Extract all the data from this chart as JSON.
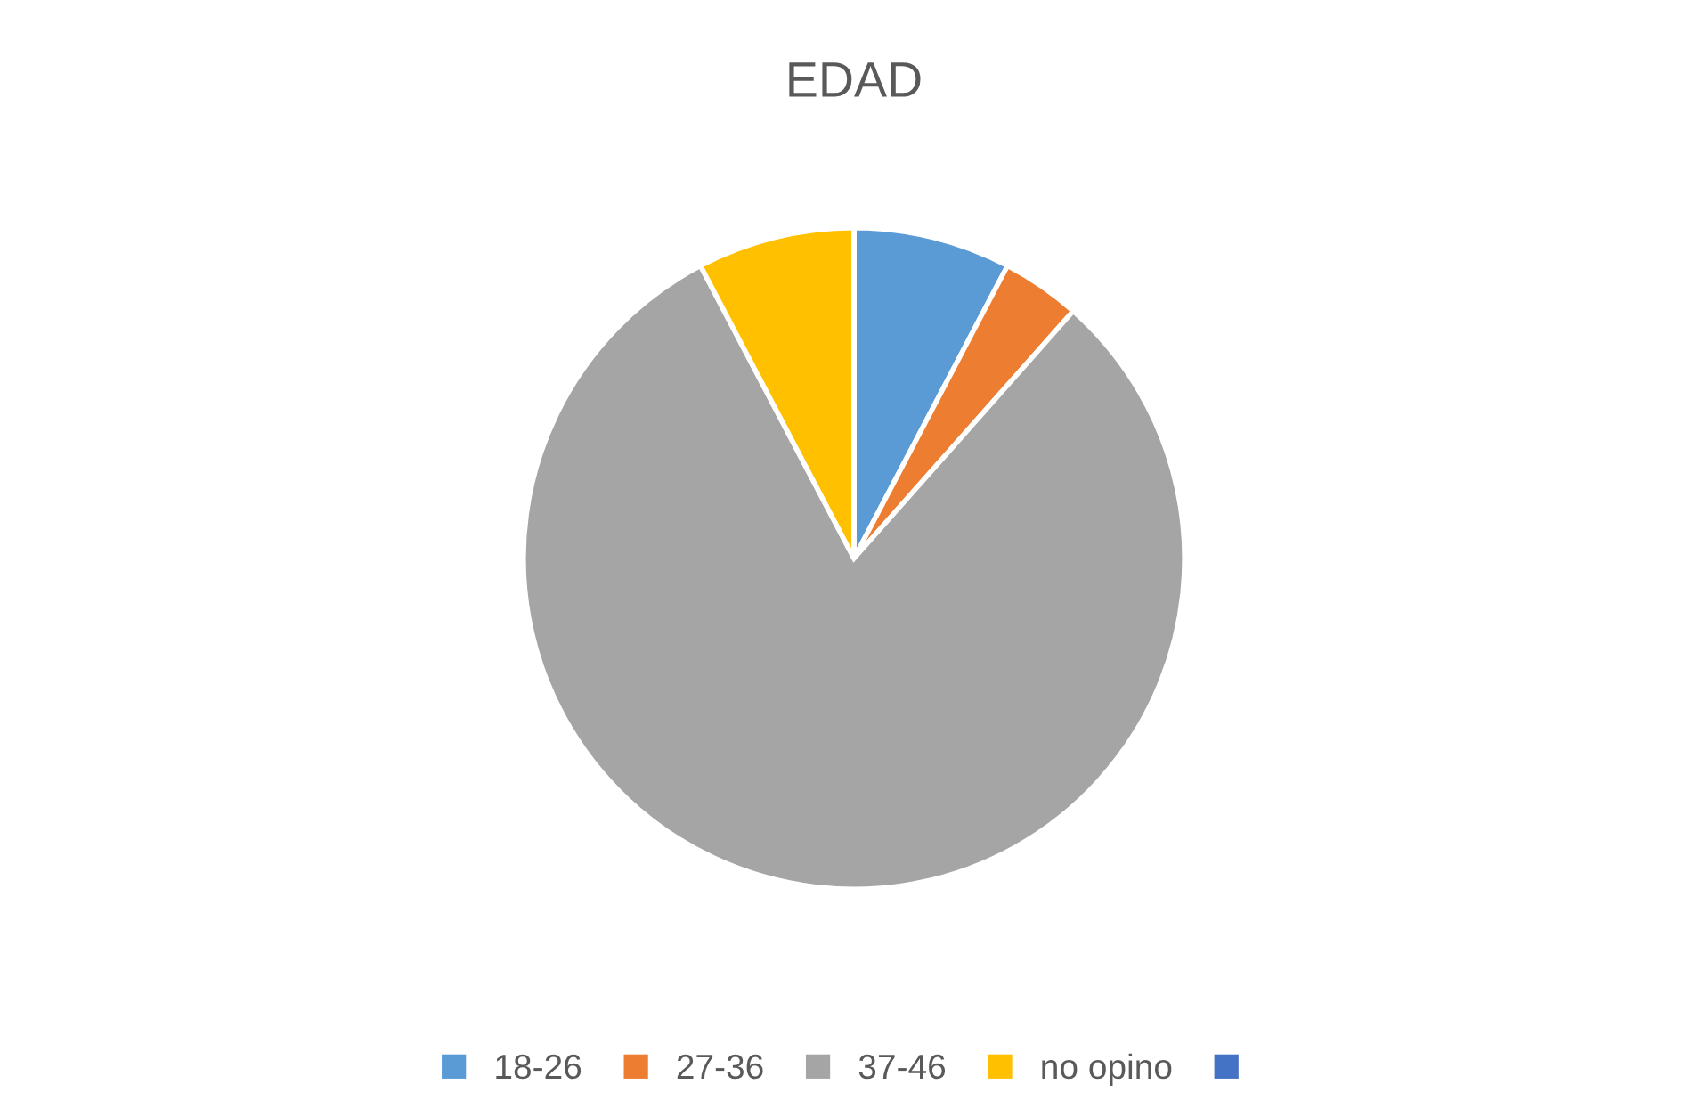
{
  "chart_data": {
    "type": "pie",
    "title": "EDAD",
    "categories": [
      "18-26",
      "27-36",
      "37-46",
      "no opino",
      null
    ],
    "values": [
      7.69,
      3.85,
      80.77,
      7.69,
      0
    ],
    "colors": [
      "#5b9bd5",
      "#ed7d31",
      "#a5a5a5",
      "#ffc000",
      "#4472c4"
    ],
    "legend": "bottom"
  }
}
